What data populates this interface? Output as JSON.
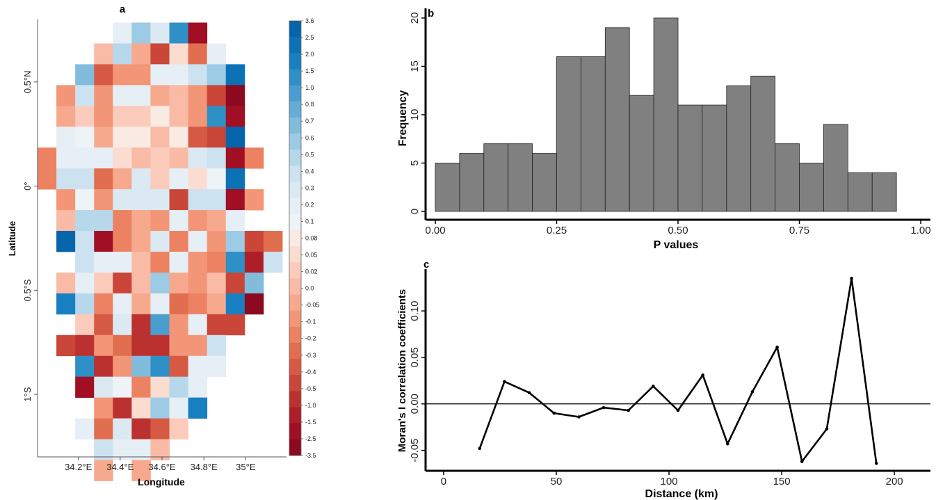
{
  "chart_data": [
    {
      "panel": "a",
      "type": "heatmap",
      "title": "a",
      "xlabel": "Longitude",
      "ylabel": "Latitude",
      "x_ticks": [
        {
          "value": 34.2,
          "label": "34.2°E"
        },
        {
          "value": 34.4,
          "label": "34.4°E"
        },
        {
          "value": 34.6,
          "label": "34.6°E"
        },
        {
          "value": 34.8,
          "label": "34.8°E"
        },
        {
          "value": 35.0,
          "label": "35°E"
        }
      ],
      "y_ticks": [
        {
          "value": 0.5,
          "label": "0.5°N"
        },
        {
          "value": 0.0,
          "label": "0°"
        },
        {
          "value": -0.5,
          "label": "0.5°S"
        },
        {
          "value": -1.0,
          "label": "1°S"
        }
      ],
      "xlim": [
        34.005,
        35.195
      ],
      "ylim": [
        -1.3,
        0.8
      ],
      "grid_origin": {
        "lon": 34.005,
        "lat": 0.785
      },
      "cell_size_deg": [
        0.09,
        0.1
      ],
      "colorbar_labels": [
        "3.6",
        "2.5",
        "2.0",
        "1.5",
        "1.0",
        "0.8",
        "0.7",
        "0.6",
        "0.5",
        "0.4",
        "0.3",
        "0.2",
        "0.1",
        "0.08",
        "0.05",
        "0.02",
        "0.0",
        "-0.05",
        "-0.1",
        "-0.2",
        "-0.3",
        "-0.4",
        "-0.5",
        "-1.0",
        "-1.5",
        "-2.5",
        "-3.5"
      ],
      "colorbar_colors": [
        "#0765ab",
        "#0c72b6",
        "#1880c0",
        "#2f8fc7",
        "#4a9ecf",
        "#66add6",
        "#82bcdd",
        "#9dcae4",
        "#b7d7eb",
        "#cce2f0",
        "#dbe9f3",
        "#e6eff5",
        "#eef3f7",
        "#faeae4",
        "#fbdcd0",
        "#fbccbb",
        "#f9bba5",
        "#f7a98e",
        "#f39677",
        "#ec8262",
        "#e26e50",
        "#d65a43",
        "#c94638",
        "#bb3130",
        "#ad1e29",
        "#a00f23",
        "#8c0a1f"
      ],
      "rows": [
        [
          null,
          null,
          null,
          null,
          11,
          7,
          10,
          3,
          25
        ],
        [
          null,
          null,
          null,
          16,
          8,
          17,
          22,
          14,
          20,
          11
        ],
        [
          null,
          null,
          6,
          21,
          18,
          18,
          11,
          11,
          9,
          7,
          1
        ],
        [
          null,
          18,
          9,
          18,
          11,
          11,
          17,
          16,
          18,
          22,
          26
        ],
        [
          null,
          17,
          15,
          18,
          15,
          15,
          13,
          16,
          18,
          3,
          25
        ],
        [
          null,
          11,
          12,
          17,
          13,
          13,
          16,
          13,
          21,
          22,
          0
        ],
        [
          19,
          11,
          11,
          11,
          14,
          16,
          15,
          16,
          10,
          9,
          25,
          19
        ],
        [
          19,
          9,
          9,
          20,
          17,
          10,
          15,
          11,
          14,
          12,
          1
        ],
        [
          null,
          18,
          12,
          18,
          10,
          10,
          10,
          22,
          9,
          9,
          25,
          18
        ],
        [
          null,
          16,
          8,
          8,
          19,
          17,
          18,
          11,
          18,
          17,
          11
        ],
        [
          null,
          0,
          9,
          25,
          19,
          17,
          10,
          19,
          11,
          18,
          7,
          22,
          20
        ],
        [
          null,
          null,
          9,
          11,
          11,
          16,
          19,
          11,
          18,
          19,
          3,
          24,
          9
        ],
        [
          null,
          16,
          11,
          15,
          22,
          16,
          7,
          17,
          18,
          16,
          22,
          6
        ],
        [
          null,
          2,
          8,
          19,
          11,
          17,
          11,
          20,
          19,
          17,
          2,
          26
        ],
        [
          null,
          null,
          15,
          21,
          10,
          23,
          4,
          18,
          11,
          22,
          22
        ],
        [
          null,
          22,
          23,
          18,
          20,
          23,
          23,
          18,
          18,
          9
        ],
        [
          null,
          null,
          3,
          23,
          18,
          6,
          3,
          21,
          11,
          11
        ],
        [
          null,
          null,
          25,
          10,
          12,
          19,
          14,
          8,
          11
        ],
        [
          null,
          null,
          null,
          18,
          23,
          14,
          7,
          11,
          2
        ],
        [
          null,
          null,
          11,
          20,
          10,
          23,
          21,
          15
        ],
        [
          null,
          null,
          null,
          9,
          11,
          11,
          16
        ],
        [
          null,
          null,
          null,
          17,
          null,
          17
        ]
      ]
    },
    {
      "panel": "b",
      "type": "bar",
      "title": "b",
      "xlabel": "P values",
      "ylabel": "Frequency",
      "bin_width": 0.05,
      "bin_starts": [
        0.0,
        0.05,
        0.1,
        0.15,
        0.2,
        0.25,
        0.3,
        0.35,
        0.4,
        0.45,
        0.5,
        0.55,
        0.6,
        0.65,
        0.7,
        0.75,
        0.8,
        0.85,
        0.9,
        0.95
      ],
      "values": [
        5,
        6,
        7,
        7,
        6,
        16,
        16,
        19,
        12,
        20,
        11,
        11,
        13,
        14,
        7,
        5,
        9,
        4,
        4,
        0
      ],
      "xlim": [
        -0.02,
        1.02
      ],
      "ylim": [
        0,
        21
      ],
      "x_ticks": [
        "0.00",
        "0.25",
        "0.50",
        "0.75",
        "1.00"
      ],
      "y_ticks": [
        "0",
        "5",
        "10",
        "15",
        "20"
      ]
    },
    {
      "panel": "c",
      "type": "line",
      "title": "c",
      "xlabel": "Distance (km)",
      "ylabel": "Moran's I correlation coefficients",
      "x": [
        16,
        27,
        38,
        49,
        60,
        71,
        82,
        93,
        104,
        115,
        126,
        137,
        148,
        159,
        170,
        181,
        192
      ],
      "y": [
        -0.048,
        0.024,
        0.012,
        -0.01,
        -0.014,
        -0.004,
        -0.007,
        0.019,
        -0.007,
        0.031,
        -0.043,
        0.013,
        0.061,
        -0.062,
        -0.027,
        0.135,
        -0.064
      ],
      "hline": 0.0,
      "xlim": [
        -8,
        216
      ],
      "ylim": [
        -0.072,
        0.145
      ],
      "x_ticks": [
        "0",
        "50",
        "100",
        "150",
        "200"
      ],
      "y_ticks": [
        "-0.05",
        "0.00",
        "0.05",
        "0.10"
      ]
    }
  ]
}
